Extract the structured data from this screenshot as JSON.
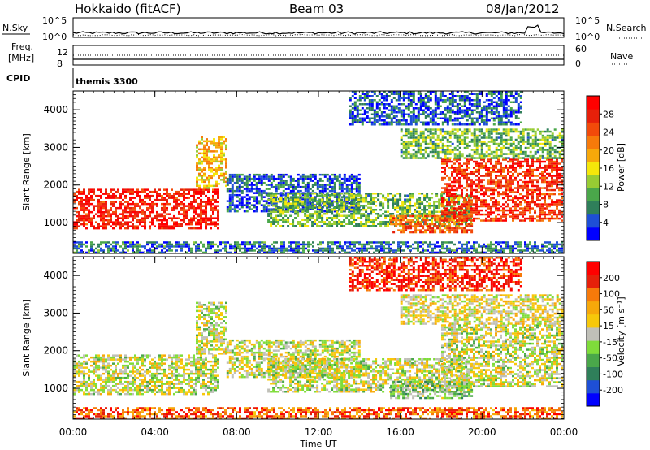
{
  "header": {
    "site": "Hokkaido (fitACF)",
    "beam": "Beam 03",
    "date": "08/Jan/2012"
  },
  "noise_panel": {
    "left_label": "N.Sky",
    "right_label": "N.Search",
    "ticks": [
      "10^5",
      "10^0"
    ]
  },
  "freq_panel": {
    "left_label_1": "Freq.",
    "left_label_2": "[MHz]",
    "left_ticks": [
      "12",
      "8"
    ],
    "right_label": "Nave",
    "right_ticks": [
      "60",
      "0"
    ]
  },
  "cpid": {
    "label": "CPID",
    "program": "themis 3300"
  },
  "chart_data": [
    {
      "type": "heatmap",
      "name": "power",
      "ylabel": "Slant Range [km]",
      "xlabel": "",
      "x_ticks": [
        "00:00",
        "04:00",
        "08:00",
        "12:00",
        "16:00",
        "20:00",
        "00:00"
      ],
      "y_ticks": [
        "1000",
        "2000",
        "3000",
        "4000"
      ],
      "ylim": [
        180,
        4500
      ],
      "xlim_hours": [
        0,
        24
      ],
      "colorbar": {
        "label": "Power [dB]",
        "ticks": [
          "28",
          "24",
          "20",
          "16",
          "12",
          "8",
          "4"
        ],
        "colors": [
          "#0000ff",
          "#1e4fd6",
          "#2f7f5a",
          "#4aa74a",
          "#98cc33",
          "#f5e70a",
          "#f7a80a",
          "#f77a0a",
          "#f24a0a",
          "#e6200a",
          "#ff0000"
        ]
      },
      "regions": [
        {
          "x0": 0.0,
          "x1": 7.2,
          "y0": 800,
          "y1": 1900,
          "level": 0.9
        },
        {
          "x0": 6.0,
          "x1": 7.5,
          "y0": 1900,
          "y1": 3300,
          "level": 0.55
        },
        {
          "x0": 7.5,
          "x1": 14.0,
          "y0": 1300,
          "y1": 2300,
          "level": 0.15
        },
        {
          "x0": 9.5,
          "x1": 19.5,
          "y0": 900,
          "y1": 1800,
          "level": 0.35
        },
        {
          "x0": 15.5,
          "x1": 19.5,
          "y0": 700,
          "y1": 1200,
          "level": 0.75
        },
        {
          "x0": 18.0,
          "x1": 24.0,
          "y0": 1000,
          "y1": 2700,
          "level": 0.85
        },
        {
          "x0": 16.0,
          "x1": 24.0,
          "y0": 2700,
          "y1": 3500,
          "level": 0.35
        },
        {
          "x0": 13.5,
          "x1": 22.0,
          "y0": 3600,
          "y1": 4500,
          "level": 0.15
        },
        {
          "x0": 0.0,
          "x1": 24.0,
          "y0": 180,
          "y1": 500,
          "level": 0.2
        }
      ]
    },
    {
      "type": "heatmap",
      "name": "velocity",
      "ylabel": "Slant Range [km]",
      "xlabel": "Time UT",
      "x_ticks": [
        "00:00",
        "04:00",
        "08:00",
        "12:00",
        "16:00",
        "20:00",
        "00:00"
      ],
      "y_ticks": [
        "1000",
        "2000",
        "3000",
        "4000"
      ],
      "ylim": [
        180,
        4500
      ],
      "xlim_hours": [
        0,
        24
      ],
      "colorbar": {
        "label": "Velocity [m s⁻¹]",
        "ticks": [
          "200",
          "100",
          "50",
          "15",
          "-15",
          "-50",
          "-100",
          "-200"
        ],
        "colors": [
          "#0000ff",
          "#1e4fd6",
          "#2f7f5a",
          "#4aa74a",
          "#7fdc3a",
          "#c0c0b8",
          "#f7c80a",
          "#f7a80a",
          "#f77a0a",
          "#e6200a",
          "#ff0000"
        ]
      },
      "regions": [
        {
          "x0": 0.0,
          "x1": 7.2,
          "y0": 800,
          "y1": 1900,
          "level": 0.5
        },
        {
          "x0": 6.0,
          "x1": 7.5,
          "y0": 1900,
          "y1": 3300,
          "level": 0.5
        },
        {
          "x0": 7.5,
          "x1": 14.0,
          "y0": 1300,
          "y1": 2300,
          "level": 0.5
        },
        {
          "x0": 9.5,
          "x1": 19.5,
          "y0": 900,
          "y1": 1800,
          "level": 0.5
        },
        {
          "x0": 15.5,
          "x1": 19.5,
          "y0": 700,
          "y1": 1200,
          "level": 0.4
        },
        {
          "x0": 18.0,
          "x1": 24.0,
          "y0": 1000,
          "y1": 2700,
          "level": 0.5
        },
        {
          "x0": 16.0,
          "x1": 24.0,
          "y0": 2700,
          "y1": 3500,
          "level": 0.55
        },
        {
          "x0": 13.5,
          "x1": 22.0,
          "y0": 3600,
          "y1": 4500,
          "level": 0.9
        },
        {
          "x0": 0.0,
          "x1": 24.0,
          "y0": 180,
          "y1": 500,
          "level": 0.8
        }
      ]
    }
  ]
}
